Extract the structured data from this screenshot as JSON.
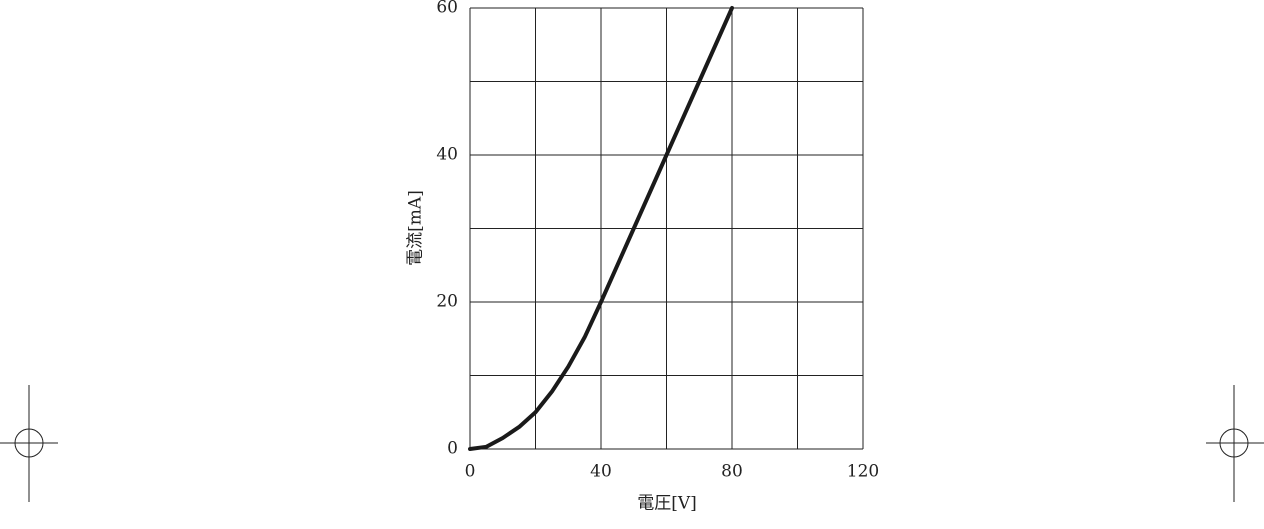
{
  "chart_data": {
    "type": "line",
    "xlabel": "電圧[V]",
    "ylabel": "電流[mA]",
    "x": [
      0,
      5,
      10,
      15,
      20,
      25,
      30,
      35,
      40,
      50,
      60,
      70,
      80
    ],
    "series": [
      {
        "name": null,
        "color": "#1a1a1a",
        "values": [
          0,
          0.3,
          1.5,
          3,
          5,
          7.8,
          11.2,
          15.2,
          20,
          30,
          40,
          50,
          60
        ]
      }
    ],
    "xlim": [
      0,
      120
    ],
    "ylim": [
      0,
      60
    ],
    "xticks": [
      0,
      40,
      80,
      120
    ],
    "yticks": [
      0,
      20,
      40,
      60
    ],
    "xgrid_minor": [
      20,
      60,
      100
    ],
    "ygrid_minor": [
      10,
      30,
      50
    ],
    "grid": true
  }
}
